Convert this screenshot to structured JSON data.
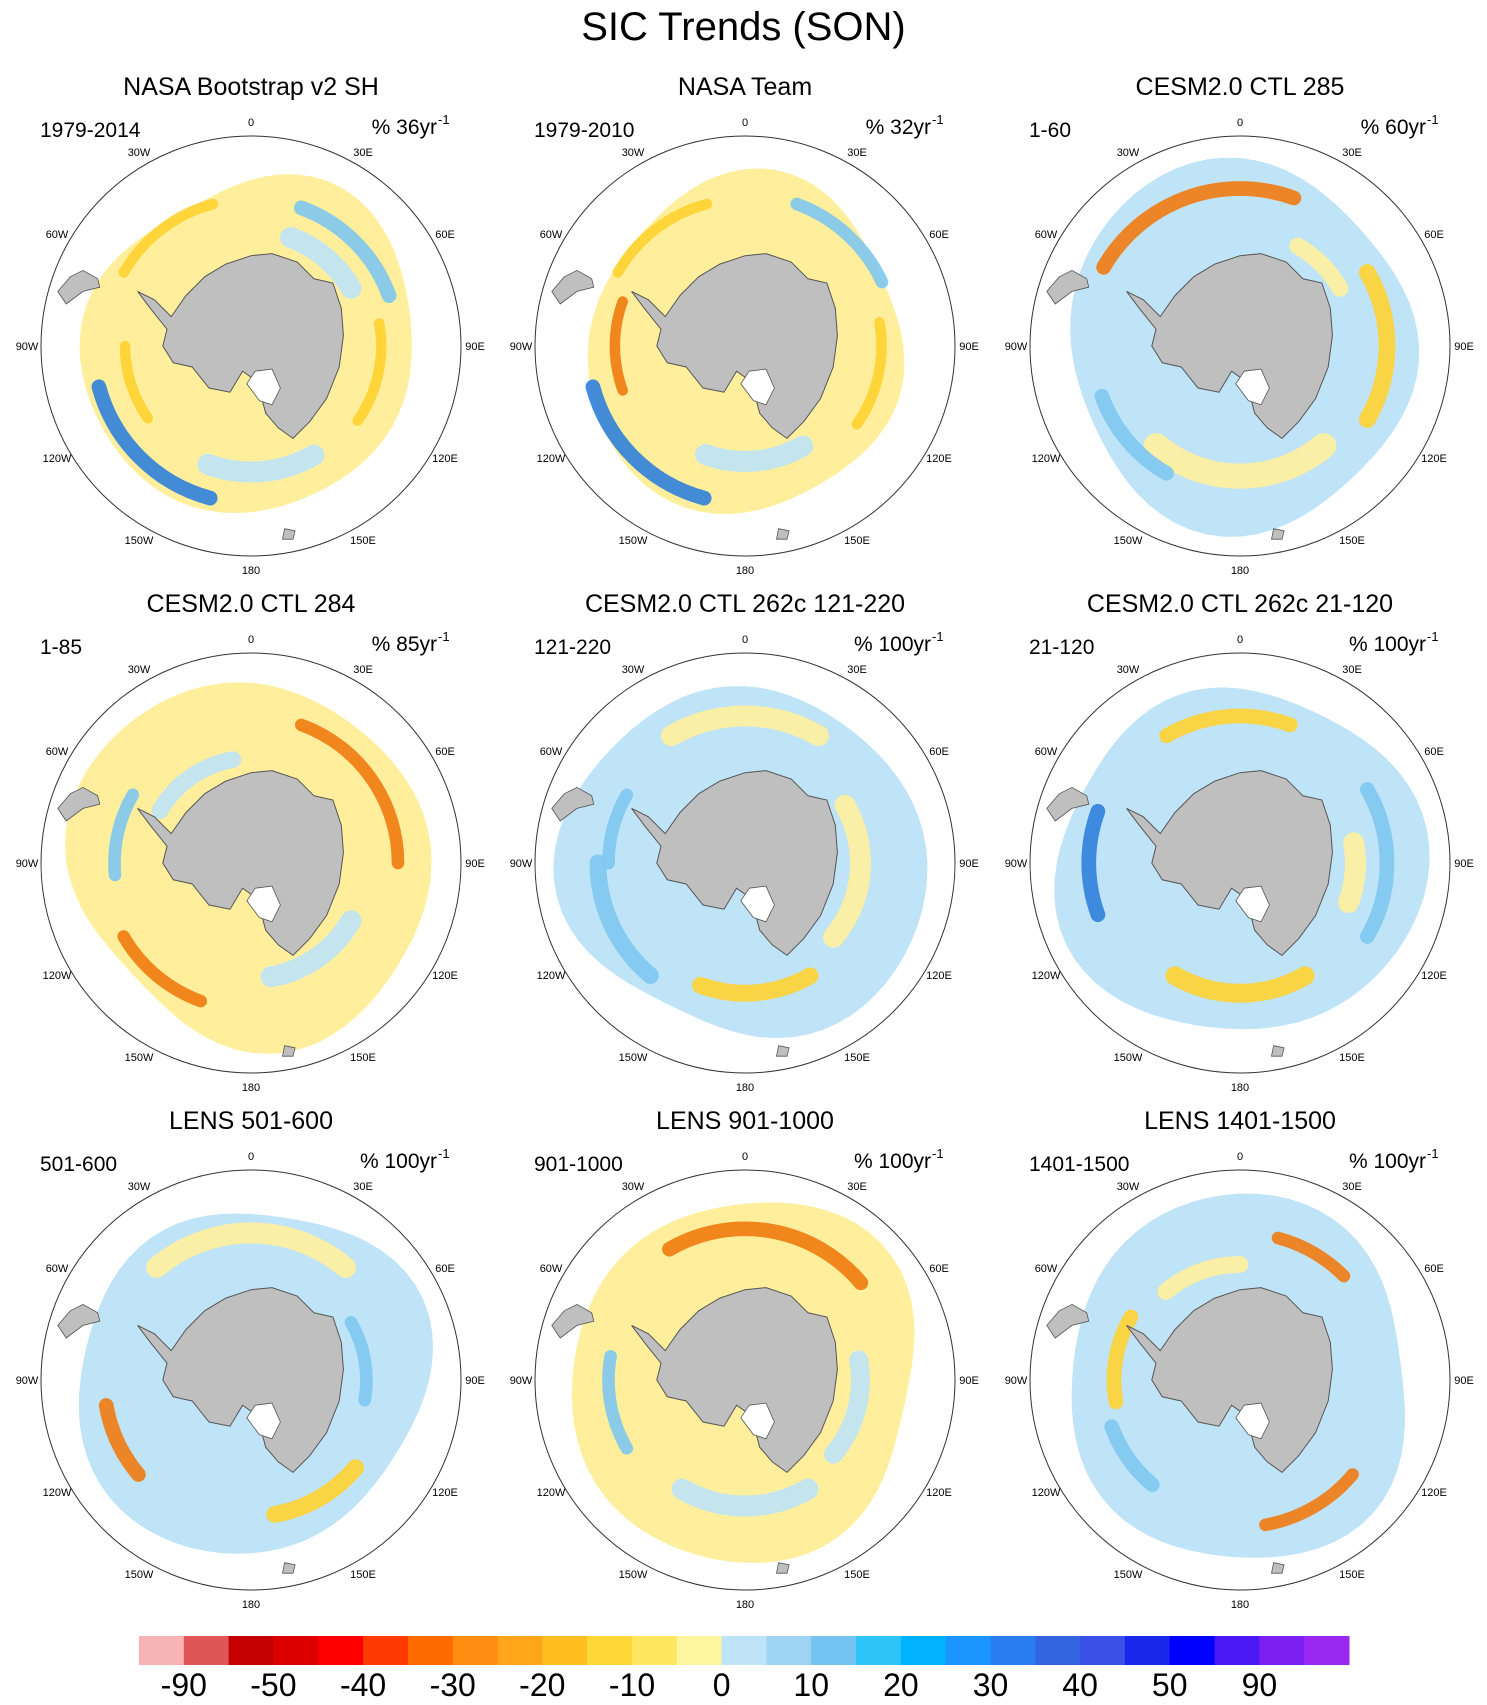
{
  "title": "SIC Trends (SON)",
  "colors": {
    "land": "#bfbfbf",
    "coast": "#555555",
    "circle": "#333333",
    "pos_light": "#ffef9c",
    "pos_mid": "#ffd230",
    "pos_strong": "#f07a10",
    "neg_light": "#bfe3f7",
    "neg_mid": "#7ec7f0",
    "neg_strong": "#2f7fdc"
  },
  "lon_labels": [
    "0",
    "30E",
    "60E",
    "90E",
    "120E",
    "150E",
    "180",
    "150W",
    "120W",
    "90W",
    "60W",
    "30W"
  ],
  "panels": [
    {
      "title": "NASA Bootstrap v2 SH",
      "period": "1979-2014",
      "units": "% 36yr",
      "exp": "-1",
      "style": "obs1"
    },
    {
      "title": "NASA Team",
      "period": "1979-2010",
      "units": "% 32yr",
      "exp": "-1",
      "style": "obs2"
    },
    {
      "title": "CESM2.0 CTL 285",
      "period": "1-60",
      "units": "% 60yr",
      "exp": "-1",
      "style": "m1"
    },
    {
      "title": "CESM2.0 CTL 284",
      "period": "1-85",
      "units": "% 85yr",
      "exp": "-1",
      "style": "m2"
    },
    {
      "title": "CESM2.0 CTL 262c 121-220",
      "period": "121-220",
      "units": "% 100yr",
      "exp": "-1",
      "style": "m3"
    },
    {
      "title": "CESM2.0 CTL 262c 21-120",
      "period": "21-120",
      "units": "% 100yr",
      "exp": "-1",
      "style": "m4"
    },
    {
      "title": "LENS 501-600",
      "period": "501-600",
      "units": "% 100yr",
      "exp": "-1",
      "style": "m5"
    },
    {
      "title": "LENS 901-1000",
      "period": "901-1000",
      "units": "% 100yr",
      "exp": "-1",
      "style": "m6"
    },
    {
      "title": "LENS 1401-1500",
      "period": "1401-1500",
      "units": "% 100yr",
      "exp": "-1",
      "style": "m7"
    }
  ],
  "colorbar": {
    "colors": [
      "#f8b4b4",
      "#e05555",
      "#c40000",
      "#dc0000",
      "#ff0000",
      "#ff3a00",
      "#ff6a00",
      "#ff8c10",
      "#ffa51a",
      "#ffbf20",
      "#ffd838",
      "#ffe860",
      "#fff7a0",
      "#bfe3f7",
      "#9fd3f2",
      "#75c3f0",
      "#2ec4f7",
      "#00b2ff",
      "#1a95ff",
      "#2a7ef0",
      "#3465e0",
      "#3a50e6",
      "#1a27ea",
      "#0000ff",
      "#4a18f5",
      "#7a1ff0",
      "#9a28f0"
    ],
    "labels": [
      "-90",
      "-50",
      "-40",
      "-30",
      "-20",
      "-10",
      "0",
      "10",
      "20",
      "30",
      "40",
      "50",
      "90"
    ]
  }
}
